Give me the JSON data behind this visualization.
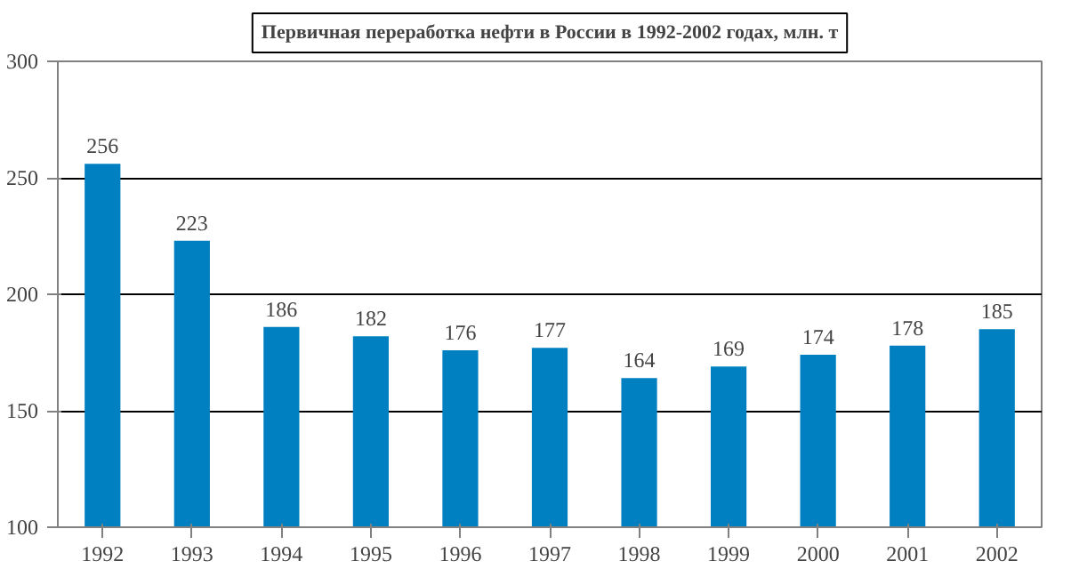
{
  "chart_data": {
    "type": "bar",
    "title": "Первичная переработка нефти в России в 1992-2002 годах, млн. т",
    "categories": [
      "1992",
      "1993",
      "1994",
      "1995",
      "1996",
      "1997",
      "1998",
      "1999",
      "2000",
      "2001",
      "2002"
    ],
    "values": [
      256,
      223,
      186,
      182,
      176,
      177,
      164,
      169,
      174,
      178,
      185
    ],
    "color": "#0080c0",
    "ylim": [
      100,
      300
    ],
    "yticks": [
      100,
      150,
      200,
      250,
      300
    ],
    "grid": "y",
    "data_labels": true
  }
}
